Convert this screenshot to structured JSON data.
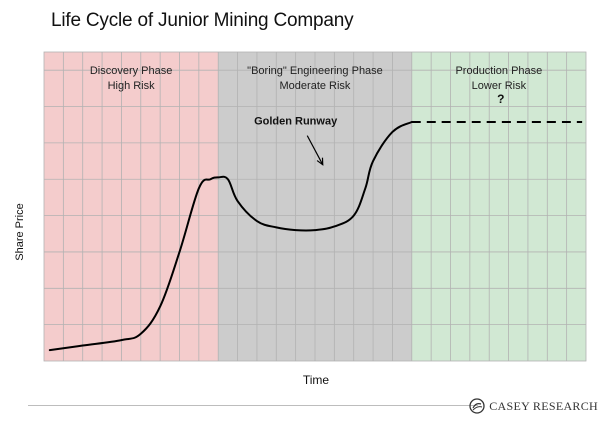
{
  "title": "Life Cycle of Junior Mining Company",
  "colors": {
    "discovery": "#f4cccc",
    "engineering": "#cccccc",
    "production": "#d1e8d3",
    "grid": "#b2b2b2",
    "curve": "#000000"
  },
  "chart_data": {
    "type": "line",
    "title": "Life Cycle of Junior Mining Company",
    "xlabel": "Time",
    "ylabel": "Share Price",
    "grid": true,
    "phases": [
      {
        "line1": "Discovery Phase",
        "line2": "High Risk",
        "x_start": 0,
        "x_end": 9
      },
      {
        "line1": "\"Boring\" Engineering Phase",
        "line2": "Moderate Risk",
        "x_start": 9,
        "x_end": 19
      },
      {
        "line1": "Production Phase",
        "line2": "Lower Risk",
        "x_start": 19,
        "x_end": 28
      }
    ],
    "series": [
      {
        "style": "solid",
        "points": [
          [
            0.3,
            0.6
          ],
          [
            2,
            0.85
          ],
          [
            4,
            1.15
          ],
          [
            5,
            1.5
          ],
          [
            6,
            3
          ],
          [
            7,
            6
          ],
          [
            8,
            9.5
          ],
          [
            8.6,
            10
          ],
          [
            9,
            10.1
          ],
          [
            9.5,
            10
          ],
          [
            10,
            8.8
          ],
          [
            11,
            7.7
          ],
          [
            12,
            7.35
          ],
          [
            13,
            7.2
          ],
          [
            14,
            7.2
          ],
          [
            15,
            7.4
          ],
          [
            16,
            8
          ],
          [
            16.6,
            9.5
          ],
          [
            17,
            11
          ],
          [
            18,
            12.6
          ],
          [
            19,
            13.15
          ]
        ]
      },
      {
        "style": "dashed",
        "points": [
          [
            19,
            13.15
          ],
          [
            27.8,
            13.15
          ]
        ]
      }
    ],
    "annotations": [
      {
        "text": "Golden Runway",
        "x": 13,
        "y": 13
      },
      {
        "text": "?",
        "x": 23.6,
        "y": 14.2
      }
    ],
    "xlim": [
      0,
      28
    ],
    "ylim": [
      0,
      17
    ]
  },
  "brand": {
    "name": "CASEY RESEARCH"
  }
}
